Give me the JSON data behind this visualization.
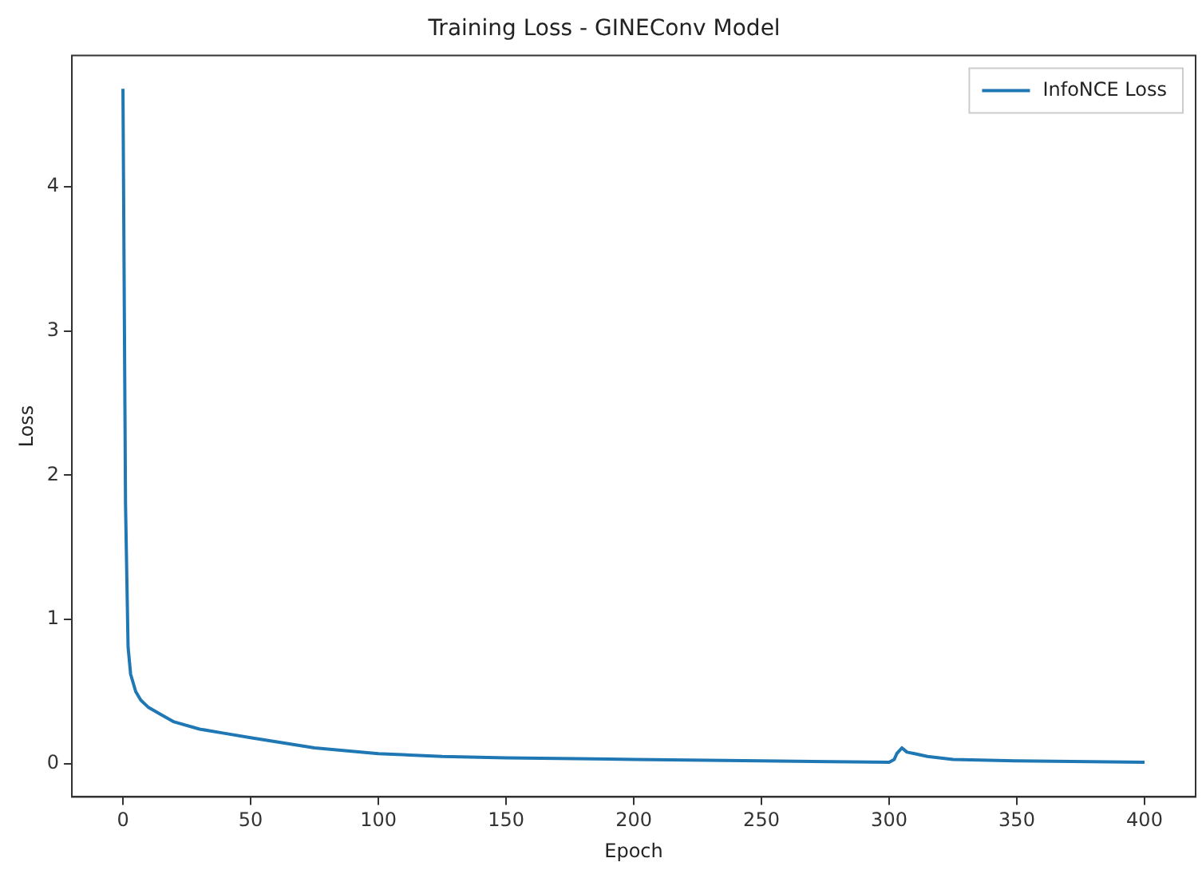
{
  "chart_data": {
    "type": "line",
    "title": "Training Loss - GINEConv Model",
    "xlabel": "Epoch",
    "ylabel": "Loss",
    "x": [
      0,
      1,
      2,
      3,
      5,
      7,
      10,
      15,
      20,
      30,
      40,
      50,
      75,
      100,
      125,
      150,
      200,
      250,
      300,
      302,
      303,
      305,
      307,
      310,
      315,
      325,
      350,
      400
    ],
    "series": [
      {
        "name": "InfoNCE Loss",
        "color": "#1f77b4",
        "values": [
          4.68,
          1.8,
          0.81,
          0.62,
          0.5,
          0.44,
          0.39,
          0.34,
          0.29,
          0.24,
          0.21,
          0.18,
          0.11,
          0.07,
          0.05,
          0.04,
          0.03,
          0.02,
          0.01,
          0.03,
          0.07,
          0.11,
          0.08,
          0.07,
          0.05,
          0.03,
          0.02,
          0.01
        ]
      }
    ],
    "xlim": [
      -20,
      420
    ],
    "ylim": [
      -0.23,
      4.91
    ],
    "xticks": [
      0,
      50,
      100,
      150,
      200,
      250,
      300,
      350,
      400
    ],
    "yticks": [
      0,
      1,
      2,
      3,
      4
    ],
    "grid": false,
    "legend": "top right",
    "marker": "none",
    "line_style": "solid"
  }
}
